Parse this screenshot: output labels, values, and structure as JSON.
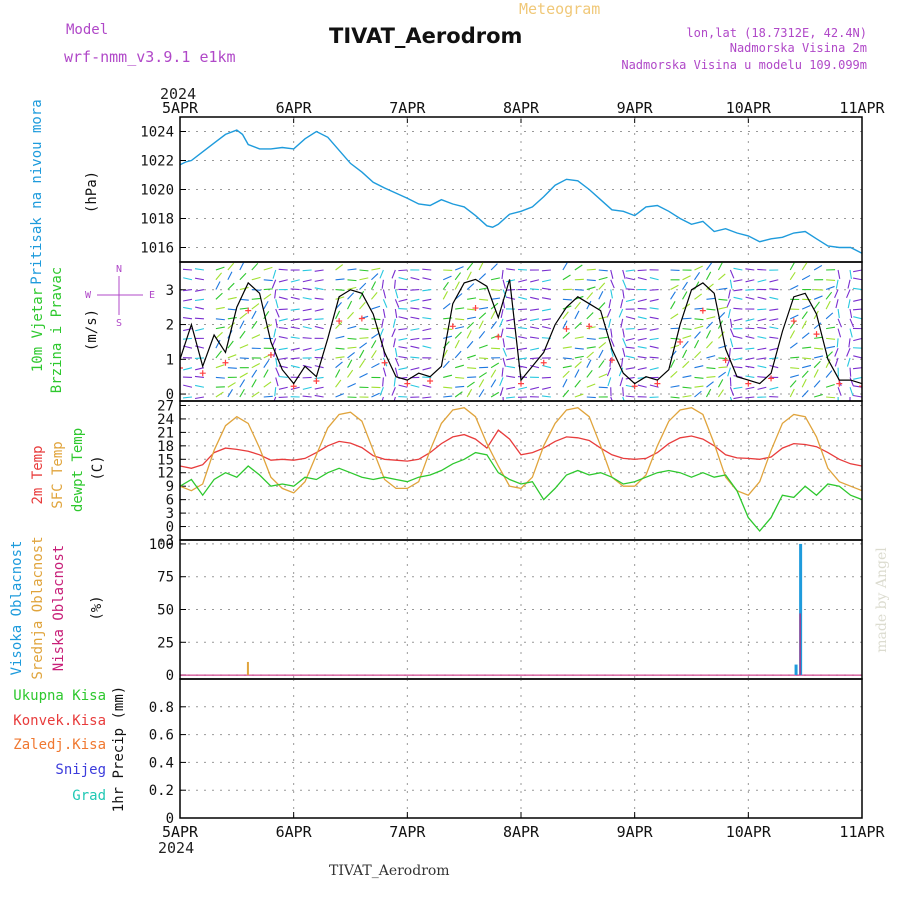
{
  "header": {
    "model_label": "Model",
    "model_name": "wrf-nmm_v3.9.1 e1km",
    "product": "Meteogram",
    "station": "TIVAT_Aerodrom",
    "lonlat": "lon,lat (18.7312E, 42.4N)",
    "elevation": "Nadmorska Visina 2m",
    "model_elevation": "Nadmorska Visina u modelu 109.099m",
    "footer_station": "TIVAT_Aerodrom",
    "credit": "made by Angel"
  },
  "colors": {
    "pressure": "#1e9bdc",
    "tmp2m": "#e83c3c",
    "sfc_temp": "#e0a43c",
    "dewpoint": "#2ec82e",
    "wind_speed": "#000000",
    "wind_ticks": "#ff4040",
    "high_cloud": "#1e9bdc",
    "mid_cloud": "#e0a43c",
    "low_cloud": "#c81e78",
    "model_text": "#b048c8",
    "meteogram_text": "#f0c878"
  },
  "chart_data": [
    {
      "type": "line",
      "id": "pressure",
      "ylabel": [
        "Pritisak na nivou mora",
        "(hPa)"
      ],
      "year": "2024",
      "x_ticks": [
        "5APR",
        "6APR",
        "7APR",
        "8APR",
        "9APR",
        "10APR",
        "11APR"
      ],
      "ylim": [
        1015,
        1025
      ],
      "y_ticks": [
        1016,
        1018,
        1020,
        1022,
        1024
      ],
      "grid": true,
      "x_days": [
        0,
        0.05,
        0.1,
        0.2,
        0.3,
        0.4,
        0.5,
        0.55,
        0.6,
        0.7,
        0.8,
        0.9,
        1.0,
        1.1,
        1.2,
        1.3,
        1.4,
        1.5,
        1.6,
        1.7,
        1.8,
        2.0,
        2.1,
        2.2,
        2.3,
        2.4,
        2.5,
        2.6,
        2.7,
        2.75,
        2.8,
        2.9,
        3.0,
        3.1,
        3.2,
        3.3,
        3.4,
        3.5,
        3.6,
        3.7,
        3.8,
        3.9,
        4.0,
        4.1,
        4.2,
        4.3,
        4.4,
        4.5,
        4.6,
        4.7,
        4.8,
        4.9,
        5.0,
        5.1,
        5.2,
        5.3,
        5.4,
        5.5,
        5.6,
        5.7,
        5.8,
        5.9,
        6.0
      ],
      "values": [
        1021.7,
        1021.9,
        1022.0,
        1022.6,
        1023.2,
        1023.8,
        1024.1,
        1023.8,
        1023.1,
        1022.8,
        1022.8,
        1022.9,
        1022.8,
        1023.5,
        1024.0,
        1023.6,
        1022.7,
        1021.8,
        1021.2,
        1020.5,
        1020.1,
        1019.4,
        1019.0,
        1018.9,
        1019.3,
        1019.0,
        1018.8,
        1018.2,
        1017.5,
        1017.4,
        1017.6,
        1018.3,
        1018.5,
        1018.8,
        1019.5,
        1020.3,
        1020.7,
        1020.6,
        1020.0,
        1019.3,
        1018.6,
        1018.5,
        1018.2,
        1018.8,
        1018.9,
        1018.5,
        1018.0,
        1017.6,
        1017.8,
        1017.1,
        1017.3,
        1017.0,
        1016.8,
        1016.4,
        1016.6,
        1016.7,
        1017.0,
        1017.1,
        1016.6,
        1016.1,
        1016.0,
        1016.0,
        1015.6
      ]
    },
    {
      "type": "line",
      "id": "wind",
      "ylabel": [
        "10m Vjetar",
        "Brzina i Pravac",
        "(m/s)"
      ],
      "compass": [
        "N",
        "W",
        "E",
        "S"
      ],
      "ylim": [
        -0.2,
        3.8
      ],
      "y_ticks": [
        0,
        1,
        2,
        3
      ],
      "grid": true,
      "x_days": [
        0,
        0.1,
        0.2,
        0.3,
        0.4,
        0.5,
        0.6,
        0.7,
        0.8,
        0.9,
        1.0,
        1.1,
        1.2,
        1.3,
        1.4,
        1.5,
        1.6,
        1.7,
        1.8,
        1.9,
        2.0,
        2.1,
        2.2,
        2.3,
        2.4,
        2.5,
        2.6,
        2.7,
        2.8,
        2.9,
        3.0,
        3.1,
        3.2,
        3.3,
        3.4,
        3.5,
        3.6,
        3.7,
        3.8,
        3.9,
        4.0,
        4.1,
        4.2,
        4.3,
        4.4,
        4.5,
        4.6,
        4.7,
        4.8,
        4.9,
        5.0,
        5.1,
        5.2,
        5.3,
        5.4,
        5.5,
        5.6,
        5.7,
        5.8,
        5.9,
        6.0
      ],
      "values": [
        1.0,
        2.0,
        0.8,
        1.7,
        1.2,
        2.5,
        3.2,
        2.9,
        1.5,
        0.7,
        0.3,
        0.8,
        0.5,
        1.6,
        2.8,
        3.0,
        2.9,
        2.3,
        1.2,
        0.5,
        0.4,
        0.6,
        0.5,
        0.8,
        2.6,
        3.2,
        3.3,
        3.1,
        2.2,
        3.3,
        0.4,
        0.8,
        1.2,
        2.0,
        2.5,
        2.8,
        2.6,
        2.4,
        1.3,
        0.6,
        0.3,
        0.5,
        0.4,
        0.7,
        2.0,
        3.0,
        3.2,
        2.9,
        1.3,
        0.5,
        0.4,
        0.3,
        0.6,
        1.8,
        2.8,
        2.9,
        2.3,
        1.0,
        0.4,
        0.4,
        0.3
      ]
    },
    {
      "type": "line",
      "id": "temperature",
      "ylabel": [
        "2m Temp",
        "SFC Temp",
        "dewpt Temp",
        "(C)"
      ],
      "ylim": [
        -3,
        28
      ],
      "y_ticks": [
        -3,
        0,
        3,
        6,
        9,
        12,
        15,
        18,
        21,
        24,
        27
      ],
      "grid": true,
      "x_days": [
        0,
        0.1,
        0.2,
        0.3,
        0.4,
        0.5,
        0.6,
        0.7,
        0.8,
        0.9,
        1.0,
        1.1,
        1.2,
        1.3,
        1.4,
        1.5,
        1.6,
        1.7,
        1.8,
        1.9,
        2.0,
        2.1,
        2.2,
        2.3,
        2.4,
        2.5,
        2.6,
        2.7,
        2.8,
        2.9,
        3.0,
        3.1,
        3.2,
        3.3,
        3.4,
        3.5,
        3.6,
        3.7,
        3.8,
        3.9,
        4.0,
        4.1,
        4.2,
        4.3,
        4.4,
        4.5,
        4.6,
        4.7,
        4.8,
        4.9,
        5.0,
        5.1,
        5.2,
        5.3,
        5.4,
        5.5,
        5.6,
        5.7,
        5.8,
        5.9,
        6.0
      ],
      "series": [
        {
          "name": "2m Temp",
          "values": [
            13.5,
            13.0,
            13.8,
            16.5,
            17.5,
            17.2,
            16.8,
            16.0,
            14.8,
            15.0,
            14.8,
            15.2,
            16.5,
            18.0,
            19.0,
            18.6,
            17.6,
            15.8,
            15.0,
            14.8,
            14.6,
            15.0,
            16.5,
            18.5,
            20.0,
            20.5,
            19.5,
            17.5,
            21.5,
            19.5,
            16.0,
            16.5,
            17.5,
            19.0,
            20.0,
            19.8,
            19.2,
            17.5,
            16.0,
            15.2,
            15.0,
            15.2,
            16.5,
            18.5,
            19.8,
            20.2,
            19.5,
            18.0,
            16.0,
            15.3,
            15.2,
            15.0,
            15.5,
            17.5,
            18.5,
            18.3,
            17.8,
            16.5,
            15.0,
            14.0,
            13.5
          ]
        },
        {
          "name": "SFC Temp",
          "values": [
            9.0,
            8.0,
            9.5,
            17.0,
            22.5,
            24.5,
            23.0,
            17.5,
            11.0,
            8.5,
            7.5,
            10.0,
            16.0,
            22.0,
            25.0,
            25.5,
            23.5,
            17.0,
            10.5,
            8.5,
            8.5,
            10.0,
            17.0,
            23.0,
            26.0,
            26.5,
            24.5,
            18.5,
            13.5,
            9.0,
            8.5,
            11.0,
            18.0,
            23.0,
            26.0,
            26.5,
            24.5,
            18.0,
            11.0,
            9.0,
            9.0,
            11.5,
            18.0,
            23.5,
            26.0,
            26.5,
            25.0,
            18.5,
            11.0,
            8.0,
            7.0,
            10.0,
            17.0,
            23.0,
            25.0,
            24.5,
            20.0,
            13.0,
            10.0,
            9.0,
            8.0
          ]
        },
        {
          "name": "dewpt Temp",
          "values": [
            9.0,
            10.5,
            7.0,
            10.5,
            12.0,
            11.0,
            13.5,
            11.5,
            9.0,
            9.5,
            9.0,
            11.0,
            10.5,
            12.0,
            13.0,
            12.0,
            11.0,
            10.5,
            11.0,
            10.5,
            10.0,
            11.0,
            11.5,
            12.5,
            14.0,
            15.0,
            16.5,
            16.0,
            12.0,
            10.5,
            9.5,
            10.0,
            6.0,
            8.5,
            11.5,
            12.5,
            11.5,
            12.0,
            11.0,
            9.5,
            10.0,
            11.0,
            12.0,
            12.5,
            12.0,
            11.0,
            12.0,
            11.0,
            11.5,
            8.0,
            2.0,
            -1.0,
            2.0,
            7.0,
            6.5,
            9.0,
            7.0,
            9.5,
            9.0,
            7.0,
            6.0
          ]
        }
      ]
    },
    {
      "type": "bar",
      "id": "cloud",
      "ylabel": [
        "Visoka Oblacnost",
        "Srednja Oblacnost",
        "Niska Oblacnost",
        "(%)"
      ],
      "ylim": [
        -3,
        103
      ],
      "y_ticks": [
        0,
        25,
        50,
        75,
        100
      ],
      "grid": true,
      "series": [
        {
          "name": "Visoka Oblacnost",
          "x_days": [
            5.42,
            5.46
          ],
          "values": [
            8,
            100
          ]
        },
        {
          "name": "Srednja Oblacnost",
          "x_days": [
            0.58
          ],
          "values": [
            10
          ]
        },
        {
          "name": "Niska Oblacnost",
          "x_days": [
            5.42
          ],
          "values": [
            47
          ]
        }
      ]
    },
    {
      "type": "bar",
      "id": "precip",
      "ylabel": [
        "1hr Precip (mm)"
      ],
      "legend": [
        "Ukupna Kisa",
        "Konvek.Kisa",
        "Zaledj.Kisa",
        "Snijeg",
        "Grad"
      ],
      "ylim": [
        0,
        1.0
      ],
      "y_ticks": [
        0,
        0.2,
        0.4,
        0.6,
        0.8
      ],
      "grid": true,
      "values": []
    }
  ]
}
